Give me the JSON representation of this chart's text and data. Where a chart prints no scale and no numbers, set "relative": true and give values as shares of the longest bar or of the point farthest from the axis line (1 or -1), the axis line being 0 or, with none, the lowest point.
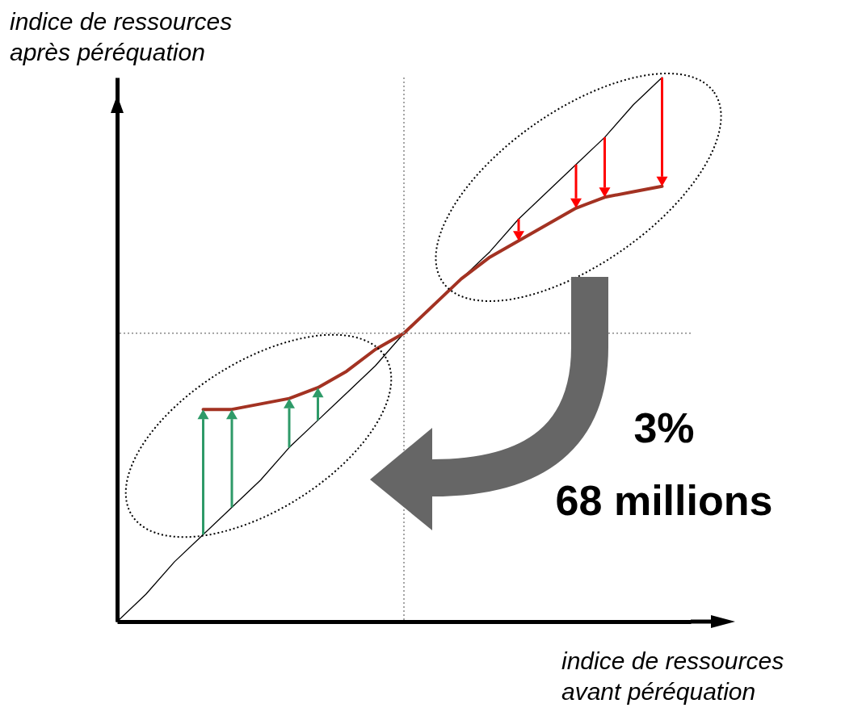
{
  "chart_data": {
    "type": "line",
    "relative": true,
    "xlabel": "indice de ressources\navant péréquation",
    "ylabel": "indice de ressources\naprès péréquation",
    "categories": [
      null,
      null,
      null,
      null,
      null,
      null,
      null,
      null,
      null,
      null,
      null,
      null,
      null,
      null,
      null,
      null,
      null,
      null,
      null,
      null,
      null
    ],
    "series": [
      {
        "color": "#000000",
        "values": [
          0,
          0.05,
          0.11,
          0.16,
          0.21,
          0.26,
          0.32,
          0.37,
          0.42,
          0.47,
          0.53,
          0.58,
          0.63,
          0.68,
          0.74,
          0.79,
          0.84,
          0.89,
          0.95,
          1,
          null
        ]
      },
      {
        "color": "#a33222",
        "values": [
          null,
          null,
          null,
          0.39,
          0.39,
          0.4,
          0.41,
          0.43,
          0.46,
          0.5,
          0.53,
          0.58,
          0.63,
          0.67,
          0.7,
          0.73,
          0.76,
          0.78,
          0.79,
          0.8,
          null
        ]
      }
    ],
    "ref_lines": [
      {
        "axis": "x",
        "color": "#888888",
        "line_style": "dotted"
      },
      {
        "axis": "y",
        "value": 0.53,
        "color": "#888888",
        "line_style": "dotted"
      }
    ],
    "annotations": [
      "3%",
      "68 millions"
    ]
  }
}
